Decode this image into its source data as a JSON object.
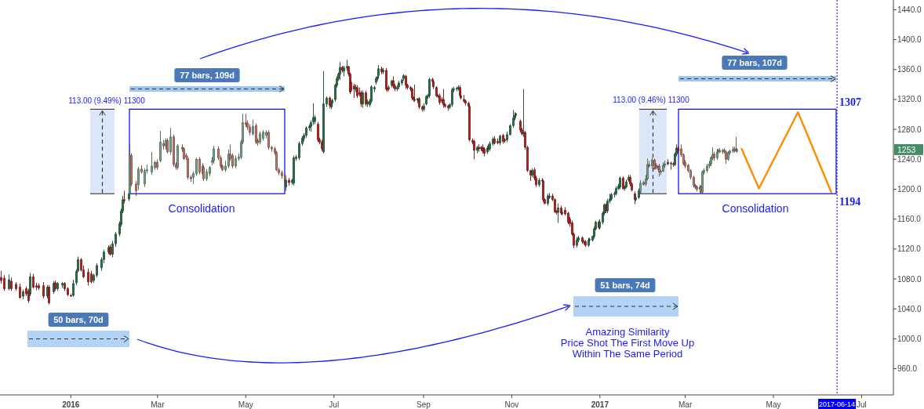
{
  "chart_data": {
    "type": "candlestick",
    "x": [
      "2015-11-14",
      "2015-11-16",
      "2015-11-19",
      "2015-11-21",
      "2015-11-24",
      "2015-11-27",
      "2015-11-29",
      "2015-12-01",
      "2015-12-03",
      "2015-12-04",
      "2015-12-06",
      "2015-12-08",
      "2015-12-10",
      "2015-12-13",
      "2015-12-16",
      "2015-12-17",
      "2015-12-20",
      "2015-12-21",
      "2015-12-23",
      "2015-12-26",
      "2015-12-28",
      "2015-12-30",
      "2016-01-01",
      "2016-01-03",
      "2016-01-05",
      "2016-01-06",
      "2016-01-08",
      "2016-01-10",
      "2016-01-13",
      "2016-01-15",
      "2016-01-17",
      "2016-01-19",
      "2016-01-22",
      "2016-01-24",
      "2016-01-27",
      "2016-01-28",
      "2016-01-30",
      "2016-02-01",
      "2016-02-04",
      "2016-02-05",
      "2016-02-06",
      "2016-02-07",
      "2016-02-10",
      "2016-02-11",
      "2016-02-12",
      "2016-02-15",
      "2016-02-17",
      "2016-02-19",
      "2016-02-21",
      "2016-02-23",
      "2016-02-26",
      "2016-02-28",
      "2016-03-01",
      "2016-03-03",
      "2016-03-05",
      "2016-03-07",
      "2016-03-08",
      "2016-03-10",
      "2016-03-12",
      "2016-03-14",
      "2016-03-15",
      "2016-03-18",
      "2016-03-19",
      "2016-03-21",
      "2016-03-22",
      "2016-03-24",
      "2016-03-26",
      "2016-03-28",
      "2016-03-30",
      "2016-04-01",
      "2016-04-02",
      "2016-04-04",
      "2016-04-06",
      "2016-04-08",
      "2016-04-09",
      "2016-04-12",
      "2016-04-14",
      "2016-04-15",
      "2016-04-17",
      "2016-04-19",
      "2016-04-20",
      "2016-04-22",
      "2016-04-24",
      "2016-04-26",
      "2016-04-28",
      "2016-04-29",
      "2016-05-01",
      "2016-05-02",
      "2016-05-04",
      "2016-05-06",
      "2016-05-08",
      "2016-05-09",
      "2016-05-11",
      "2016-05-13",
      "2016-05-15",
      "2016-05-17",
      "2016-05-19",
      "2016-05-21",
      "2016-05-22",
      "2016-05-24",
      "2016-05-26",
      "2016-05-28",
      "2016-05-29",
      "2016-05-31",
      "2016-06-02",
      "2016-06-03",
      "2016-06-05",
      "2016-06-07",
      "2016-06-09",
      "2016-06-10",
      "2016-06-12",
      "2016-06-14",
      "2016-06-15",
      "2016-06-17",
      "2016-06-18",
      "2016-06-20",
      "2016-06-21",
      "2016-06-23",
      "2016-06-24",
      "2016-06-26",
      "2016-06-28",
      "2016-06-29",
      "2016-06-30",
      "2016-07-02",
      "2016-07-03",
      "2016-07-04",
      "2016-07-05",
      "2016-07-07",
      "2016-07-08",
      "2016-07-10",
      "2016-07-11",
      "2016-07-12",
      "2016-07-13",
      "2016-07-15",
      "2016-07-16",
      "2016-07-17",
      "2016-07-19",
      "2016-07-20",
      "2016-07-21",
      "2016-07-23",
      "2016-07-24",
      "2016-07-26",
      "2016-07-27",
      "2016-07-29",
      "2016-07-30",
      "2016-07-31",
      "2016-08-01",
      "2016-08-03",
      "2016-08-04",
      "2016-08-06",
      "2016-08-07",
      "2016-08-08",
      "2016-08-10",
      "2016-08-11",
      "2016-08-12",
      "2016-08-14",
      "2016-08-15",
      "2016-08-17",
      "2016-08-18",
      "2016-08-20",
      "2016-08-21",
      "2016-08-23",
      "2016-08-24",
      "2016-08-25",
      "2016-08-26",
      "2016-08-28",
      "2016-08-29",
      "2016-08-31",
      "2016-09-01",
      "2016-09-03",
      "2016-09-04",
      "2016-09-05",
      "2016-09-07",
      "2016-09-08",
      "2016-09-10",
      "2016-09-11",
      "2016-09-12",
      "2016-09-14",
      "2016-09-15",
      "2016-09-16",
      "2016-09-18",
      "2016-09-19",
      "2016-09-21",
      "2016-09-22",
      "2016-09-24",
      "2016-09-25",
      "2016-09-26",
      "2016-09-27",
      "2016-09-29",
      "2016-09-30",
      "2016-10-02",
      "2016-10-03",
      "2016-10-05",
      "2016-10-06",
      "2016-10-08",
      "2016-10-09",
      "2016-10-11",
      "2016-10-12",
      "2016-10-13",
      "2016-10-15",
      "2016-10-16",
      "2016-10-17",
      "2016-10-19",
      "2016-10-20",
      "2016-10-22",
      "2016-10-24",
      "2016-10-26",
      "2016-10-27",
      "2016-10-29",
      "2016-10-31",
      "2016-11-02",
      "2016-11-03",
      "2016-11-04",
      "2016-11-07",
      "2016-11-08",
      "2016-11-09",
      "2016-11-10",
      "2016-11-12",
      "2016-11-14",
      "2016-11-15",
      "2016-11-17",
      "2016-11-18",
      "2016-11-20",
      "2016-11-22",
      "2016-11-23",
      "2016-11-24",
      "2016-11-26",
      "2016-11-27",
      "2016-11-29",
      "2016-12-01",
      "2016-12-02",
      "2016-12-03",
      "2016-12-05",
      "2016-12-06",
      "2016-12-08",
      "2016-12-10",
      "2016-12-11",
      "2016-12-13",
      "2016-12-14",
      "2016-12-16",
      "2016-12-17",
      "2016-12-20",
      "2016-12-21",
      "2016-12-22",
      "2016-12-24",
      "2016-12-25",
      "2016-12-27",
      "2016-12-28",
      "2016-12-29",
      "2016-12-31",
      "2017-01-01",
      "2017-01-03",
      "2017-01-04",
      "2017-01-05",
      "2017-01-06",
      "2017-01-08",
      "2017-01-09",
      "2017-01-11",
      "2017-01-12",
      "2017-01-14",
      "2017-01-15",
      "2017-01-17",
      "2017-01-18",
      "2017-01-19",
      "2017-01-21",
      "2017-01-22",
      "2017-01-23",
      "2017-01-25",
      "2017-01-26",
      "2017-01-28",
      "2017-01-29",
      "2017-01-31",
      "2017-02-02",
      "2017-02-03",
      "2017-02-04",
      "2017-02-06",
      "2017-02-08",
      "2017-02-09",
      "2017-02-10",
      "2017-02-11",
      "2017-02-12",
      "2017-02-14",
      "2017-02-15",
      "2017-02-17",
      "2017-02-19",
      "2017-02-21",
      "2017-02-22",
      "2017-02-23",
      "2017-02-24",
      "2017-02-26",
      "2017-02-28",
      "2017-03-01",
      "2017-03-03",
      "2017-03-05",
      "2017-03-07",
      "2017-03-08",
      "2017-03-09",
      "2017-03-11",
      "2017-03-12",
      "2017-03-13",
      "2017-03-14",
      "2017-03-16",
      "2017-03-18",
      "2017-03-19",
      "2017-03-20",
      "2017-03-21",
      "2017-03-23",
      "2017-03-24",
      "2017-03-25",
      "2017-03-27",
      "2017-03-28",
      "2017-03-29",
      "2017-03-31",
      "2017-04-01",
      "2017-04-03",
      "2017-04-04",
      "2017-04-05",
      "2017-04-06"
    ],
    "ohlc": [
      [
        1082,
        1091,
        1074,
        1078
      ],
      [
        1081,
        1085,
        1064,
        1067
      ],
      [
        1067,
        1086,
        1065,
        1079
      ],
      [
        1077,
        1082,
        1064,
        1067
      ],
      [
        1073,
        1076,
        1064,
        1067
      ],
      [
        1069,
        1074,
        1054,
        1055
      ],
      [
        1057,
        1066,
        1053,
        1063
      ],
      [
        1067,
        1070,
        1057,
        1060
      ],
      [
        1064,
        1067,
        1048,
        1051
      ],
      [
        1060,
        1088,
        1057,
        1083
      ],
      [
        1083,
        1087,
        1067,
        1069
      ],
      [
        1071,
        1075,
        1065,
        1069
      ],
      [
        1071,
        1074,
        1065,
        1068
      ],
      [
        1071,
        1076,
        1054,
        1057
      ],
      [
        1057,
        1072,
        1054,
        1069
      ],
      [
        1069,
        1072,
        1046,
        1048
      ],
      [
        1063,
        1077,
        1060,
        1074
      ],
      [
        1075,
        1078,
        1064,
        1067
      ],
      [
        1067,
        1076,
        1064,
        1074
      ],
      [
        1072,
        1076,
        1068,
        1074
      ],
      [
        1074,
        1076,
        1064,
        1067
      ],
      [
        1067,
        1069,
        1057,
        1059
      ],
      [
        1058,
        1060,
        1056,
        1057
      ],
      [
        1058,
        1079,
        1056,
        1074
      ],
      [
        1075,
        1093,
        1072,
        1090
      ],
      [
        1091,
        1110,
        1089,
        1106
      ],
      [
        1106,
        1108,
        1090,
        1092
      ],
      [
        1092,
        1098,
        1081,
        1083
      ],
      [
        1089,
        1094,
        1071,
        1076
      ],
      [
        1087,
        1091,
        1074,
        1076
      ],
      [
        1078,
        1087,
        1075,
        1085
      ],
      [
        1085,
        1101,
        1082,
        1098
      ],
      [
        1095,
        1109,
        1091,
        1106
      ],
      [
        1106,
        1119,
        1101,
        1116
      ],
      [
        1116,
        1125,
        1113,
        1122
      ],
      [
        1123,
        1126,
        1111,
        1113
      ],
      [
        1113,
        1131,
        1109,
        1127
      ],
      [
        1127,
        1143,
        1123,
        1140
      ],
      [
        1140,
        1157,
        1137,
        1154
      ],
      [
        1153,
        1174,
        1150,
        1171
      ],
      [
        1171,
        1191,
        1168,
        1186
      ],
      [
        1186,
        1198,
        1181,
        1185
      ],
      [
        1187,
        1200,
        1184,
        1194
      ],
      [
        1194,
        1261,
        1190,
        1245
      ],
      [
        1245,
        1248,
        1204,
        1207
      ],
      [
        1207,
        1211,
        1191,
        1198
      ],
      [
        1206,
        1230,
        1199,
        1227
      ],
      [
        1227,
        1232,
        1221,
        1223
      ],
      [
        1207,
        1228,
        1203,
        1225
      ],
      [
        1225,
        1233,
        1221,
        1226
      ],
      [
        1223,
        1250,
        1219,
        1231
      ],
      [
        1229,
        1238,
        1226,
        1236
      ],
      [
        1236,
        1240,
        1226,
        1229
      ],
      [
        1238,
        1278,
        1236,
        1263
      ],
      [
        1261,
        1266,
        1253,
        1258
      ],
      [
        1258,
        1268,
        1253,
        1265
      ],
      [
        1265,
        1268,
        1248,
        1250
      ],
      [
        1250,
        1282,
        1246,
        1270
      ],
      [
        1270,
        1273,
        1230,
        1233
      ],
      [
        1233,
        1236,
        1226,
        1229
      ],
      [
        1229,
        1260,
        1226,
        1258
      ],
      [
        1256,
        1260,
        1250,
        1254
      ],
      [
        1254,
        1256,
        1239,
        1241
      ],
      [
        1245,
        1248,
        1239,
        1243
      ],
      [
        1241,
        1244,
        1213,
        1216
      ],
      [
        1216,
        1219,
        1210,
        1214
      ],
      [
        1216,
        1224,
        1207,
        1221
      ],
      [
        1221,
        1242,
        1218,
        1240
      ],
      [
        1240,
        1243,
        1220,
        1223
      ],
      [
        1231,
        1235,
        1218,
        1221
      ],
      [
        1229,
        1232,
        1211,
        1214
      ],
      [
        1214,
        1227,
        1211,
        1223
      ],
      [
        1221,
        1231,
        1217,
        1229
      ],
      [
        1236,
        1243,
        1232,
        1238
      ],
      [
        1238,
        1258,
        1234,
        1254
      ],
      [
        1254,
        1257,
        1239,
        1242
      ],
      [
        1242,
        1245,
        1228,
        1231
      ],
      [
        1231,
        1233,
        1224,
        1226
      ],
      [
        1226,
        1238,
        1223,
        1231
      ],
      [
        1231,
        1253,
        1228,
        1247
      ],
      [
        1247,
        1260,
        1238,
        1241
      ],
      [
        1245,
        1248,
        1228,
        1231
      ],
      [
        1231,
        1245,
        1228,
        1241
      ],
      [
        1241,
        1248,
        1238,
        1243
      ],
      [
        1243,
        1266,
        1240,
        1263
      ],
      [
        1263,
        1301,
        1260,
        1289
      ],
      [
        1289,
        1301,
        1283,
        1287
      ],
      [
        1288,
        1292,
        1279,
        1283
      ],
      [
        1283,
        1287,
        1272,
        1276
      ],
      [
        1274,
        1293,
        1272,
        1284
      ],
      [
        1285,
        1288,
        1260,
        1263
      ],
      [
        1265,
        1268,
        1258,
        1262
      ],
      [
        1263,
        1277,
        1260,
        1274
      ],
      [
        1268,
        1279,
        1265,
        1276
      ],
      [
        1272,
        1279,
        1268,
        1276
      ],
      [
        1276,
        1279,
        1253,
        1256
      ],
      [
        1256,
        1258,
        1250,
        1254
      ],
      [
        1254,
        1257,
        1246,
        1249
      ],
      [
        1249,
        1251,
        1224,
        1226
      ],
      [
        1226,
        1229,
        1219,
        1222
      ],
      [
        1222,
        1225,
        1214,
        1218
      ],
      [
        1218,
        1221,
        1207,
        1210
      ],
      [
        1203,
        1214,
        1198,
        1212
      ],
      [
        1212,
        1215,
        1205,
        1209
      ],
      [
        1209,
        1214,
        1206,
        1212
      ],
      [
        1208,
        1245,
        1205,
        1242
      ],
      [
        1241,
        1246,
        1238,
        1243
      ],
      [
        1242,
        1264,
        1239,
        1261
      ],
      [
        1261,
        1271,
        1258,
        1268
      ],
      [
        1268,
        1275,
        1264,
        1272
      ],
      [
        1272,
        1284,
        1269,
        1282
      ],
      [
        1282,
        1287,
        1278,
        1284
      ],
      [
        1284,
        1292,
        1277,
        1289
      ],
      [
        1290,
        1315,
        1286,
        1296
      ],
      [
        1291,
        1299,
        1287,
        1296
      ],
      [
        1287,
        1290,
        1263,
        1266
      ],
      [
        1266,
        1269,
        1260,
        1263
      ],
      [
        1263,
        1266,
        1251,
        1254
      ],
      [
        1250,
        1358,
        1248,
        1314
      ],
      [
        1314,
        1324,
        1310,
        1322
      ],
      [
        1322,
        1324,
        1308,
        1312
      ],
      [
        1310,
        1319,
        1307,
        1314
      ],
      [
        1315,
        1321,
        1311,
        1319
      ],
      [
        1320,
        1341,
        1317,
        1339
      ],
      [
        1339,
        1351,
        1336,
        1348
      ],
      [
        1348,
        1356,
        1345,
        1354
      ],
      [
        1354,
        1370,
        1346,
        1363
      ],
      [
        1363,
        1365,
        1356,
        1359
      ],
      [
        1358,
        1365,
        1351,
        1362
      ],
      [
        1362,
        1373,
        1358,
        1364
      ],
      [
        1364,
        1365,
        1351,
        1354
      ],
      [
        1354,
        1356,
        1327,
        1330
      ],
      [
        1343,
        1346,
        1330,
        1332
      ],
      [
        1338,
        1341,
        1322,
        1334
      ],
      [
        1334,
        1340,
        1330,
        1336
      ],
      [
        1336,
        1339,
        1322,
        1325
      ],
      [
        1329,
        1336,
        1324,
        1327
      ],
      [
        1329,
        1332,
        1310,
        1314
      ],
      [
        1314,
        1332,
        1309,
        1329
      ],
      [
        1329,
        1332,
        1311,
        1314
      ],
      [
        1314,
        1320,
        1310,
        1317
      ],
      [
        1313,
        1321,
        1310,
        1318
      ],
      [
        1318,
        1339,
        1315,
        1337
      ],
      [
        1334,
        1338,
        1330,
        1336
      ],
      [
        1343,
        1351,
        1340,
        1348
      ],
      [
        1348,
        1352,
        1345,
        1350
      ],
      [
        1352,
        1366,
        1348,
        1361
      ],
      [
        1361,
        1364,
        1354,
        1357
      ],
      [
        1357,
        1362,
        1354,
        1359
      ],
      [
        1359,
        1362,
        1332,
        1334
      ],
      [
        1334,
        1337,
        1330,
        1333
      ],
      [
        1336,
        1339,
        1331,
        1334
      ],
      [
        1339,
        1346,
        1336,
        1345
      ],
      [
        1345,
        1351,
        1335,
        1338
      ],
      [
        1338,
        1341,
        1331,
        1334
      ],
      [
        1334,
        1339,
        1331,
        1336
      ],
      [
        1337,
        1345,
        1334,
        1342
      ],
      [
        1342,
        1348,
        1339,
        1346
      ],
      [
        1348,
        1354,
        1345,
        1352
      ],
      [
        1351,
        1353,
        1334,
        1339
      ],
      [
        1339,
        1341,
        1333,
        1336
      ],
      [
        1336,
        1338,
        1331,
        1334
      ],
      [
        1334,
        1336,
        1319,
        1322
      ],
      [
        1322,
        1324,
        1317,
        1320
      ],
      [
        1320,
        1340,
        1317,
        1319
      ],
      [
        1319,
        1322,
        1315,
        1321
      ],
      [
        1321,
        1323,
        1307,
        1310
      ],
      [
        1310,
        1312,
        1304,
        1307
      ],
      [
        1307,
        1315,
        1304,
        1311
      ],
      [
        1314,
        1326,
        1312,
        1324
      ],
      [
        1324,
        1327,
        1321,
        1325
      ],
      [
        1325,
        1349,
        1322,
        1347
      ],
      [
        1347,
        1349,
        1341,
        1344
      ],
      [
        1344,
        1346,
        1334,
        1337
      ],
      [
        1336,
        1338,
        1323,
        1325
      ],
      [
        1325,
        1327,
        1322,
        1324
      ],
      [
        1325,
        1328,
        1313,
        1316
      ],
      [
        1320,
        1323,
        1315,
        1318
      ],
      [
        1320,
        1334,
        1309,
        1313
      ],
      [
        1313,
        1315,
        1309,
        1311
      ],
      [
        1311,
        1313,
        1305,
        1309
      ],
      [
        1310,
        1315,
        1307,
        1313
      ],
      [
        1313,
        1336,
        1310,
        1333
      ],
      [
        1333,
        1337,
        1330,
        1334
      ],
      [
        1334,
        1337,
        1331,
        1335
      ],
      [
        1335,
        1339,
        1332,
        1336
      ],
      [
        1336,
        1339,
        1322,
        1325
      ],
      [
        1325,
        1331,
        1320,
        1322
      ],
      [
        1320,
        1326,
        1316,
        1318
      ],
      [
        1318,
        1320,
        1312,
        1315
      ],
      [
        1315,
        1317,
        1309,
        1311
      ],
      [
        1311,
        1313,
        1264,
        1266
      ],
      [
        1265,
        1268,
        1260,
        1263
      ],
      [
        1264,
        1266,
        1240,
        1252
      ],
      [
        1252,
        1258,
        1248,
        1256
      ],
      [
        1256,
        1260,
        1250,
        1254
      ],
      [
        1254,
        1258,
        1251,
        1256
      ],
      [
        1256,
        1260,
        1248,
        1251
      ],
      [
        1254,
        1256,
        1244,
        1248
      ],
      [
        1250,
        1258,
        1247,
        1255
      ],
      [
        1253,
        1260,
        1250,
        1254
      ],
      [
        1254,
        1264,
        1251,
        1261
      ],
      [
        1261,
        1270,
        1258,
        1267
      ],
      [
        1267,
        1271,
        1260,
        1262
      ],
      [
        1264,
        1268,
        1260,
        1262
      ],
      [
        1262,
        1273,
        1259,
        1271
      ],
      [
        1272,
        1274,
        1261,
        1264
      ],
      [
        1266,
        1268,
        1262,
        1265
      ],
      [
        1266,
        1277,
        1263,
        1273
      ],
      [
        1273,
        1287,
        1272,
        1285
      ],
      [
        1285,
        1306,
        1282,
        1295
      ],
      [
        1295,
        1303,
        1292,
        1299
      ],
      [
        1299,
        1302,
        1297,
        1301
      ],
      [
        1291,
        1293,
        1276,
        1279
      ],
      [
        1279,
        1282,
        1272,
        1274
      ],
      [
        1274,
        1334,
        1270,
        1276
      ],
      [
        1276,
        1278,
        1253,
        1256
      ],
      [
        1256,
        1258,
        1223,
        1225
      ],
      [
        1225,
        1226,
        1211,
        1219
      ],
      [
        1219,
        1228,
        1216,
        1225
      ],
      [
        1226,
        1229,
        1212,
        1215
      ],
      [
        1215,
        1218,
        1203,
        1206
      ],
      [
        1206,
        1215,
        1203,
        1212
      ],
      [
        1212,
        1215,
        1208,
        1211
      ],
      [
        1211,
        1213,
        1183,
        1186
      ],
      [
        1186,
        1188,
        1180,
        1181
      ],
      [
        1181,
        1194,
        1178,
        1191
      ],
      [
        1189,
        1195,
        1187,
        1191
      ],
      [
        1191,
        1194,
        1184,
        1186
      ],
      [
        1186,
        1188,
        1168,
        1170
      ],
      [
        1170,
        1172,
        1166,
        1169
      ],
      [
        1169,
        1181,
        1155,
        1175
      ],
      [
        1175,
        1178,
        1166,
        1168
      ],
      [
        1169,
        1172,
        1165,
        1167
      ],
      [
        1172,
        1176,
        1165,
        1167
      ],
      [
        1168,
        1170,
        1153,
        1156
      ],
      [
        1160,
        1163,
        1150,
        1154
      ],
      [
        1155,
        1158,
        1138,
        1140
      ],
      [
        1140,
        1142,
        1121,
        1125
      ],
      [
        1125,
        1136,
        1122,
        1132
      ],
      [
        1132,
        1138,
        1129,
        1135
      ],
      [
        1135,
        1137,
        1127,
        1130
      ],
      [
        1130,
        1132,
        1126,
        1129
      ],
      [
        1130,
        1132,
        1123,
        1125
      ],
      [
        1125,
        1135,
        1123,
        1132
      ],
      [
        1132,
        1135,
        1129,
        1133
      ],
      [
        1132,
        1138,
        1130,
        1137
      ],
      [
        1137,
        1150,
        1134,
        1147
      ],
      [
        1147,
        1158,
        1145,
        1156
      ],
      [
        1156,
        1158,
        1147,
        1149
      ],
      [
        1149,
        1160,
        1146,
        1156
      ],
      [
        1156,
        1170,
        1153,
        1168
      ],
      [
        1168,
        1181,
        1165,
        1179
      ],
      [
        1179,
        1181,
        1168,
        1171
      ],
      [
        1171,
        1187,
        1168,
        1184
      ],
      [
        1184,
        1194,
        1181,
        1187
      ],
      [
        1187,
        1195,
        1185,
        1193
      ],
      [
        1193,
        1197,
        1189,
        1194
      ],
      [
        1194,
        1204,
        1192,
        1201
      ],
      [
        1201,
        1207,
        1199,
        1204
      ],
      [
        1203,
        1217,
        1200,
        1215
      ],
      [
        1215,
        1217,
        1199,
        1201
      ],
      [
        1201,
        1205,
        1198,
        1203
      ],
      [
        1203,
        1213,
        1201,
        1210
      ],
      [
        1212,
        1219,
        1210,
        1216
      ],
      [
        1216,
        1219,
        1204,
        1207
      ],
      [
        1207,
        1209,
        1197,
        1199
      ],
      [
        1194,
        1197,
        1180,
        1186
      ],
      [
        1186,
        1192,
        1184,
        1189
      ],
      [
        1189,
        1201,
        1187,
        1198
      ],
      [
        1196,
        1212,
        1194,
        1208
      ],
      [
        1209,
        1211,
        1205,
        1206
      ],
      [
        1207,
        1219,
        1204,
        1214
      ],
      [
        1214,
        1241,
        1212,
        1233
      ],
      [
        1233,
        1238,
        1229,
        1231
      ],
      [
        1231,
        1242,
        1228,
        1239
      ],
      [
        1239,
        1241,
        1226,
        1227
      ],
      [
        1232,
        1235,
        1227,
        1229
      ],
      [
        1229,
        1232,
        1226,
        1230
      ],
      [
        1231,
        1234,
        1217,
        1223
      ],
      [
        1223,
        1226,
        1219,
        1224
      ],
      [
        1224,
        1236,
        1223,
        1232
      ],
      [
        1232,
        1238,
        1229,
        1234
      ],
      [
        1236,
        1240,
        1232,
        1234
      ],
      [
        1234,
        1237,
        1226,
        1235
      ],
      [
        1234,
        1236,
        1230,
        1233
      ],
      [
        1233,
        1249,
        1231,
        1247
      ],
      [
        1247,
        1260,
        1244,
        1255
      ],
      [
        1255,
        1258,
        1248,
        1251
      ],
      [
        1254,
        1260,
        1243,
        1246
      ],
      [
        1246,
        1248,
        1232,
        1234
      ],
      [
        1236,
        1239,
        1228,
        1231
      ],
      [
        1232,
        1234,
        1222,
        1225
      ],
      [
        1225,
        1227,
        1213,
        1216
      ],
      [
        1216,
        1218,
        1202,
        1205
      ],
      [
        1205,
        1207,
        1200,
        1203
      ],
      [
        1203,
        1205,
        1197,
        1200
      ],
      [
        1200,
        1206,
        1195,
        1203
      ],
      [
        1203,
        1205,
        1194,
        1196
      ],
      [
        1196,
        1225,
        1194,
        1223
      ],
      [
        1223,
        1228,
        1220,
        1225
      ],
      [
        1225,
        1234,
        1222,
        1231
      ],
      [
        1231,
        1238,
        1228,
        1234
      ],
      [
        1234,
        1244,
        1231,
        1242
      ],
      [
        1242,
        1256,
        1239,
        1246
      ],
      [
        1247,
        1250,
        1238,
        1242
      ],
      [
        1242,
        1254,
        1239,
        1250
      ],
      [
        1250,
        1254,
        1247,
        1252
      ],
      [
        1252,
        1255,
        1248,
        1250
      ],
      [
        1250,
        1254,
        1247,
        1252
      ],
      [
        1252,
        1255,
        1248,
        1251
      ],
      [
        1250,
        1252,
        1234,
        1240
      ],
      [
        1240,
        1251,
        1238,
        1249
      ],
      [
        1249,
        1253,
        1246,
        1251
      ],
      [
        1251,
        1257,
        1249,
        1253
      ],
      [
        1254,
        1257,
        1249,
        1252
      ],
      [
        1253,
        1270,
        1250,
        1251
      ],
      [
        1251,
        1255,
        1249,
        1253
      ]
    ],
    "colors": [
      "#d32020",
      "#d32020",
      "#2e7d4f",
      "#d32020",
      "#d32020",
      "#d32020",
      "#2e7d4f",
      "#d32020",
      "#d32020",
      "#2e7d4f",
      "#d32020",
      "#d32020",
      "#d32020",
      "#d32020",
      "#2e7d4f",
      "#d32020",
      "#2e7d4f",
      "#d32020",
      "#2e7d4f",
      "#2e7d4f",
      "#d32020",
      "#d32020",
      "#d32020",
      "#2e7d4f",
      "#2e7d4f",
      "#2e7d4f",
      "#d32020",
      "#d32020",
      "#d32020",
      "#d32020",
      "#2e7d4f",
      "#2e7d4f",
      "#2e7d4f",
      "#2e7d4f",
      "#2e7d4f",
      "#d32020",
      "#2e7d4f",
      "#2e7d4f",
      "#2e7d4f",
      "#2e7d4f",
      "#2e7d4f",
      "#d32020",
      "#2e7d4f",
      "#80b894",
      "#da8070",
      "#da8070",
      "#80b894",
      "#da8070",
      "#80b894",
      "#80b894",
      "#80b894",
      "#80b894",
      "#da8070",
      "#80b894",
      "#da8070",
      "#80b894",
      "#da8070",
      "#80b894",
      "#da8070",
      "#da8070",
      "#80b894",
      "#da8070",
      "#da8070",
      "#da8070",
      "#da8070",
      "#da8070",
      "#80b894",
      "#80b894",
      "#da8070",
      "#da8070",
      "#da8070",
      "#80b894",
      "#80b894",
      "#80b894",
      "#80b894",
      "#da8070",
      "#da8070",
      "#da8070",
      "#80b894",
      "#80b894",
      "#da8070",
      "#da8070",
      "#80b894",
      "#80b894",
      "#80b894",
      "#80b894",
      "#da8070",
      "#da8070",
      "#da8070",
      "#80b894",
      "#da8070",
      "#da8070",
      "#80b894",
      "#80b894",
      "#80b894",
      "#da8070",
      "#da8070",
      "#da8070",
      "#da8070",
      "#da8070",
      "#da8070",
      "#da8070",
      "#2e7d4f",
      "#d32020",
      "#2e7d4f",
      "#2e7d4f",
      "#2e7d4f",
      "#2e7d4f",
      "#2e7d4f",
      "#2e7d4f",
      "#2e7d4f",
      "#2e7d4f",
      "#2e7d4f",
      "#2e7d4f",
      "#2e7d4f",
      "#d32020",
      "#d32020",
      "#d32020",
      "#2e7d4f",
      "#2e7d4f",
      "#d32020",
      "#2e7d4f",
      "#2e7d4f",
      "#2e7d4f",
      "#2e7d4f",
      "#2e7d4f",
      "#2e7d4f",
      "#d32020",
      "#2e7d4f",
      "#2e7d4f",
      "#d32020",
      "#d32020",
      "#d32020",
      "#d32020",
      "#2e7d4f",
      "#d32020",
      "#d32020",
      "#d32020",
      "#2e7d4f",
      "#d32020",
      "#2e7d4f",
      "#2e7d4f",
      "#2e7d4f",
      "#2e7d4f",
      "#2e7d4f",
      "#2e7d4f",
      "#2e7d4f",
      "#d32020",
      "#2e7d4f",
      "#d32020",
      "#d32020",
      "#d32020",
      "#2e7d4f",
      "#d32020",
      "#d32020",
      "#2e7d4f",
      "#2e7d4f",
      "#2e7d4f",
      "#2e7d4f",
      "#d32020",
      "#d32020",
      "#d32020",
      "#d32020",
      "#d32020",
      "#d32020",
      "#2e7d4f",
      "#d32020",
      "#d32020",
      "#2e7d4f",
      "#2e7d4f",
      "#2e7d4f",
      "#2e7d4f",
      "#d32020",
      "#d32020",
      "#d32020",
      "#d32020",
      "#d32020",
      "#d32020",
      "#d32020",
      "#d32020",
      "#d32020",
      "#2e7d4f",
      "#2e7d4f",
      "#2e7d4f",
      "#2e7d4f",
      "#2e7d4f",
      "#d32020",
      "#d32020",
      "#d32020",
      "#d32020",
      "#d32020",
      "#d32020",
      "#d32020",
      "#d32020",
      "#2e7d4f",
      "#d32020",
      "#2e7d4f",
      "#d32020",
      "#d32020",
      "#2e7d4f",
      "#2e7d4f",
      "#2e7d4f",
      "#2e7d4f",
      "#d32020",
      "#d32020",
      "#2e7d4f",
      "#d32020",
      "#d32020",
      "#2e7d4f",
      "#2e7d4f",
      "#2e7d4f",
      "#2e7d4f",
      "#2e7d4f",
      "#d32020",
      "#d32020",
      "#2e7d4f",
      "#d32020",
      "#d32020",
      "#d32020",
      "#2e7d4f",
      "#d32020",
      "#d32020",
      "#2e7d4f",
      "#d32020",
      "#d32020",
      "#d32020",
      "#2e7d4f",
      "#2e7d4f",
      "#d32020",
      "#d32020",
      "#d32020",
      "#2e7d4f",
      "#d32020",
      "#d32020",
      "#d32020",
      "#d32020",
      "#d32020",
      "#d32020",
      "#d32020",
      "#2e7d4f",
      "#2e7d4f",
      "#d32020",
      "#d32020",
      "#d32020",
      "#2e7d4f",
      "#2e7d4f",
      "#2e7d4f",
      "#2e7d4f",
      "#2e7d4f",
      "#d32020",
      "#2e7d4f",
      "#2e7d4f",
      "#2e7d4f",
      "#d32020",
      "#2e7d4f",
      "#2e7d4f",
      "#2e7d4f",
      "#2e7d4f",
      "#2e7d4f",
      "#2e7d4f",
      "#2e7d4f",
      "#d32020",
      "#2e7d4f",
      "#2e7d4f",
      "#2e7d4f",
      "#d32020",
      "#d32020",
      "#d32020",
      "#2e7d4f",
      "#2e7d4f",
      "#80b894",
      "#da8070",
      "#80b894",
      "#80b894",
      "#da8070",
      "#80b894",
      "#da8070",
      "#da8070",
      "#80b894",
      "#da8070",
      "#80b894",
      "#80b894",
      "#80b894",
      "#d32020",
      "#2e7d4f",
      "#d32020",
      "#2e7d4f",
      "#2e7d4f",
      "#d32020",
      "#da8070",
      "#da8070",
      "#da8070",
      "#da8070",
      "#da8070",
      "#da8070",
      "#da8070",
      "#da8070",
      "#80b894",
      "#da8070",
      "#80b894",
      "#80b894",
      "#80b894",
      "#80b894",
      "#80b894",
      "#80b894",
      "#da8070",
      "#80b894",
      "#80b894",
      "#da8070",
      "#80b894",
      "#da8070",
      "#da8070",
      "#80b894",
      "#80b894",
      "#80b894",
      "#da8070",
      "#da8070",
      "#80b894"
    ],
    "series": [
      {
        "type": "line",
        "color": "#ff8c00",
        "x": [
          "2017-04-09",
          "2017-04-21",
          "2017-05-18",
          "2017-06-10"
        ],
        "values": [
          1254,
          1201,
          1303,
          1196
        ]
      }
    ],
    "xlim": [
      "2015-11-13",
      "2017-07-23"
    ],
    "xticks": [
      {
        "value": "2016-01-01",
        "label": "2016"
      },
      {
        "value": "2016-03-01",
        "label": "Mar"
      },
      {
        "value": "2016-05-01",
        "label": "May"
      },
      {
        "value": "2016-07-01",
        "label": "Jul"
      },
      {
        "value": "2016-09-01",
        "label": "Sep"
      },
      {
        "value": "2016-11-01",
        "label": "Nov"
      },
      {
        "value": "2017-01-01",
        "label": "2017"
      },
      {
        "value": "2017-03-01",
        "label": "Mar"
      },
      {
        "value": "2017-05-01",
        "label": "May"
      },
      {
        "value": "2017-07-01",
        "label": "Jul"
      }
    ],
    "ylim": [
      925,
      1453
    ],
    "yticks": [
      {
        "value": 960,
        "label": "960.0"
      },
      {
        "value": 1000,
        "label": "1000.0"
      },
      {
        "value": 1040,
        "label": "1040.0"
      },
      {
        "value": 1080,
        "label": "1080.0"
      },
      {
        "value": 1120,
        "label": "1120.0"
      },
      {
        "value": 1160,
        "label": "1160.0"
      },
      {
        "value": 1200,
        "label": "1200.0"
      },
      {
        "value": 1240,
        "label": "1240.0"
      },
      {
        "value": 1280,
        "label": "1280.0"
      },
      {
        "value": 1320,
        "label": "1320.0"
      },
      {
        "value": 1360,
        "label": "1360.0"
      },
      {
        "value": 1400,
        "label": "1400.0"
      },
      {
        "value": 1440,
        "label": "1440.0"
      }
    ],
    "ref_lines": [
      {
        "axis": "x",
        "value": "2017-06-14",
        "label": "2017-06-14",
        "color": "#0000ff",
        "line_style": "dotted"
      }
    ],
    "annotations": [
      "77 bars, 109d",
      "113.00 (9.49%) 11300",
      "Consolidation",
      "50 bars, 70d",
      "51 bars, 74d",
      "Amazing Similarity",
      "Price Shot The First Move Up",
      "Within The Same Period",
      "113.00 (9.46%) 11300",
      "77 bars, 107d",
      "Consolidation",
      {
        "text": "1307",
        "x": "2017-06-14",
        "y": 1307
      },
      {
        "text": "1194",
        "x": "2017-06-14",
        "y": 1194
      },
      "1253"
    ]
  }
}
